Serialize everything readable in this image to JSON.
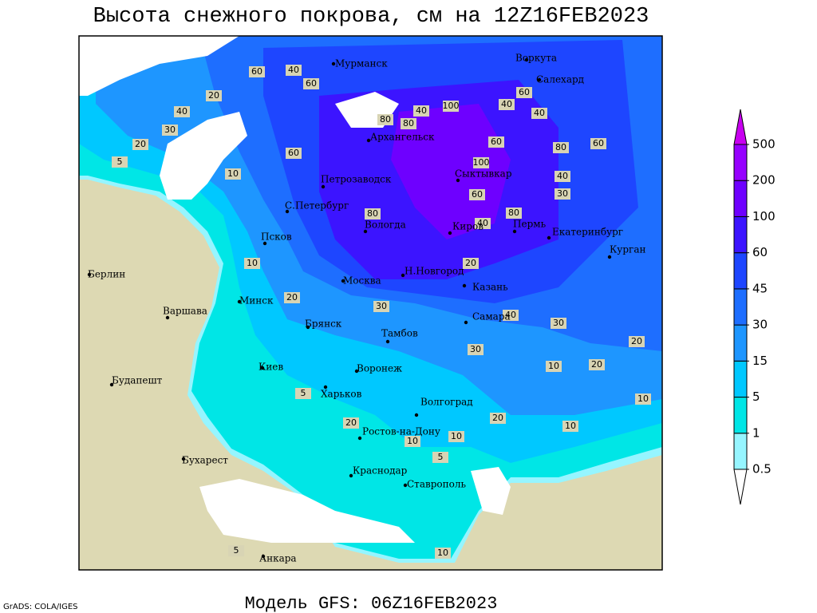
{
  "title": "Высота снежного покрова, см на 12Z16FEB2023",
  "footer": "Модель GFS: 06Z16FEB2023",
  "credit": "GrADS: COLA/IGES",
  "colorbar": {
    "levels": [
      0.5,
      1,
      5,
      15,
      30,
      45,
      60,
      100,
      200,
      500
    ],
    "colors": [
      "#ffffff",
      "#96f5ff",
      "#00e6e6",
      "#00c8ff",
      "#1e96ff",
      "#1e6eff",
      "#1e46ff",
      "#3c14ff",
      "#6e00ff",
      "#9600ff",
      "#c800f0"
    ]
  },
  "cities": [
    "Мурманск",
    "Воркута",
    "Салехард",
    "Архангельск",
    "Сыктывкар",
    "Петрозаводск",
    "С.Петербург",
    "Вологда",
    "Киров",
    "Пермь",
    "Екатеринбург",
    "Курган",
    "Псков",
    "Москва",
    "Н.Новгород",
    "Казань",
    "Берлин",
    "Варшава",
    "Минск",
    "Брянск",
    "Тамбов",
    "Самара",
    "Киев",
    "Воронеж",
    "Харьков",
    "Волгоград",
    "Будапешт",
    "Ростов-на-Дону",
    "Бухарест",
    "Краснодар",
    "Ставрополь",
    "Анкара"
  ],
  "contour_labels": [
    60,
    40,
    60,
    20,
    30,
    40,
    20,
    5,
    10,
    60,
    80,
    100,
    40,
    60,
    80,
    40,
    80,
    60,
    100,
    40,
    80,
    60,
    80,
    40,
    30,
    40,
    60,
    20,
    10,
    30,
    20,
    30,
    40,
    30,
    20,
    20,
    10,
    10,
    20,
    10,
    5,
    5,
    10,
    20,
    10,
    5,
    10
  ]
}
